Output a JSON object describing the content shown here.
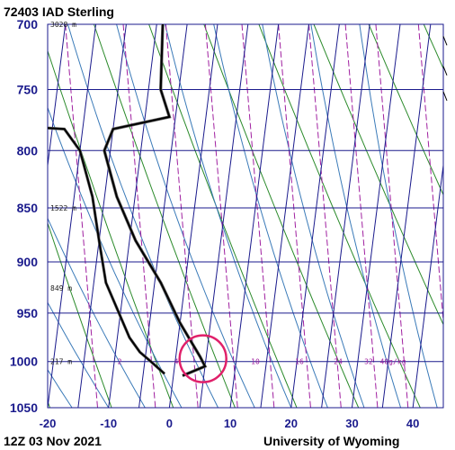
{
  "header": {
    "station": "72403 IAD Sterling"
  },
  "footer": {
    "time": "12Z 03 Nov 2021",
    "source": "University of Wyoming"
  },
  "colors": {
    "grid": "#1a1a8c",
    "dry_adiabat": "#2a8a2a",
    "moist_adiabat": "#3a7ab8",
    "mixing_ratio": "#a020a0",
    "profile": "#000000",
    "highlight_circle": "#e0206a"
  },
  "chart_data": {
    "type": "skew-t",
    "xlim": [
      -20,
      45
    ],
    "ylim_hpa": [
      1050,
      700
    ],
    "pressure_ticks": [
      "700",
      "750",
      "800",
      "850",
      "900",
      "950",
      "1000",
      "1050"
    ],
    "temperature_ticks": [
      "-20",
      "-10",
      "0",
      "10",
      "20",
      "30",
      "40"
    ],
    "height_labels": [
      {
        "p": 700,
        "text": "3028 m"
      },
      {
        "p": 850,
        "text": "1522 m"
      },
      {
        "p": 925,
        "text": "849 m"
      },
      {
        "p": 1000,
        "text": "217 m"
      }
    ],
    "mixing_ratio_labels": [
      "2",
      "4",
      "10",
      "16",
      "24",
      "32",
      "40g/kg"
    ],
    "series": [
      {
        "points": [
          {
            "p": 1015,
            "t": 1.5
          },
          {
            "p": 1005,
            "t": 5
          },
          {
            "p": 995,
            "t": 4
          },
          {
            "p": 960,
            "t": 0
          },
          {
            "p": 920,
            "t": -4
          },
          {
            "p": 880,
            "t": -9
          },
          {
            "p": 840,
            "t": -13
          },
          {
            "p": 800,
            "t": -16
          },
          {
            "p": 782,
            "t": -15
          },
          {
            "p": 772,
            "t": -6
          },
          {
            "p": 750,
            "t": -8
          },
          {
            "p": 700,
            "t": -9
          }
        ]
      },
      {
        "points": [
          {
            "p": 1013,
            "t": -1.5
          },
          {
            "p": 1000,
            "t": -4
          },
          {
            "p": 990,
            "t": -6
          },
          {
            "p": 975,
            "t": -8
          },
          {
            "p": 920,
            "t": -13
          },
          {
            "p": 880,
            "t": -15
          },
          {
            "p": 840,
            "t": -17
          },
          {
            "p": 800,
            "t": -20
          },
          {
            "p": 782,
            "t": -23
          },
          {
            "p": 779,
            "t": -33
          }
        ]
      }
    ],
    "annotation": {
      "type": "circle",
      "p": 997,
      "t": 4.5
    },
    "wind_barbs": [
      {
        "p": 713
      },
      {
        "p": 736
      },
      {
        "p": 756
      }
    ]
  }
}
